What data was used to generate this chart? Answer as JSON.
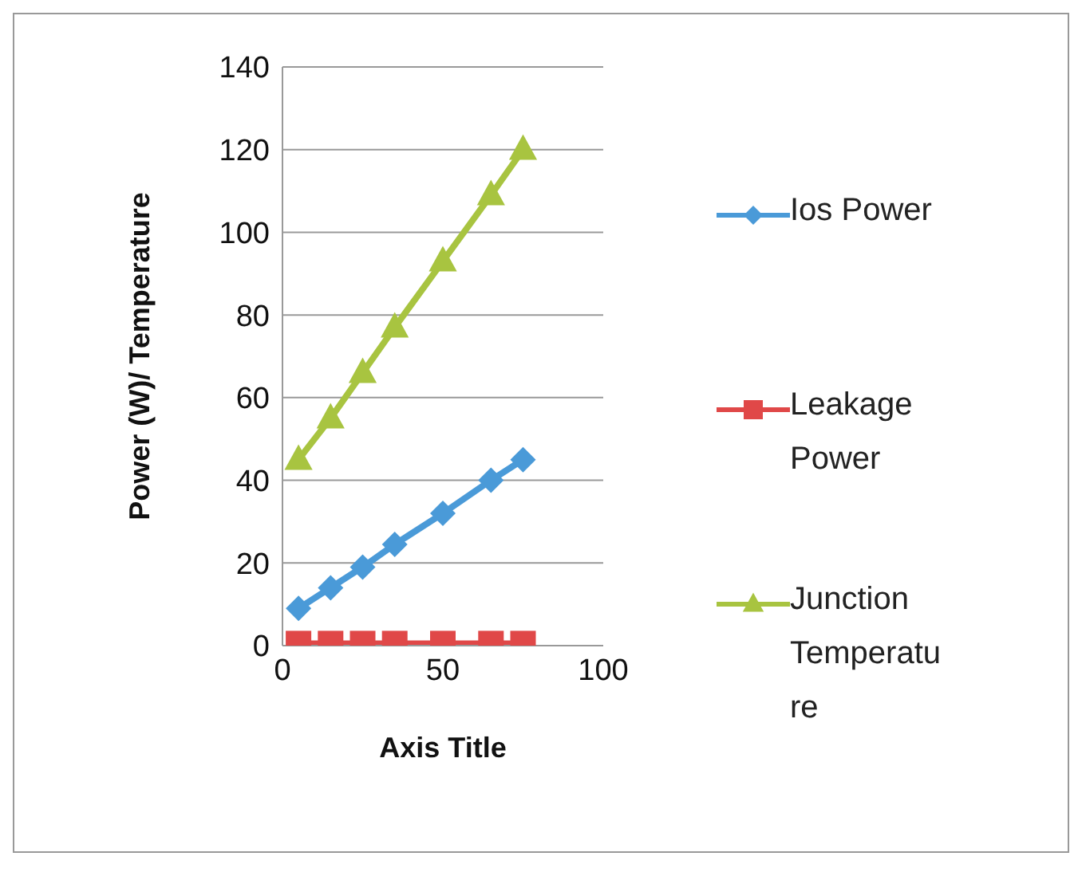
{
  "chart_data": {
    "type": "line",
    "xlabel": "Axis Title",
    "ylabel": "Power (W)/ Temperature",
    "xlim": [
      0,
      100
    ],
    "xticks": [
      0,
      50,
      100
    ],
    "ylim": [
      0,
      140
    ],
    "yticks": [
      0,
      20,
      40,
      60,
      80,
      100,
      120,
      140
    ],
    "grid": "y",
    "legend": "right",
    "line_style": "solid",
    "series": [
      {
        "name": "Ios Power",
        "marker": "diamond",
        "color": "#4a9ad8",
        "x": [
          5,
          15,
          25,
          35,
          50,
          65,
          75
        ],
        "values": [
          9,
          14,
          19,
          24.5,
          32,
          40,
          45
        ]
      },
      {
        "name": "Leakage Power",
        "marker": "square",
        "color": "#e04848",
        "x": [
          5,
          15,
          25,
          35,
          50,
          65,
          75
        ],
        "values": [
          0.5,
          0.5,
          0.5,
          0.5,
          0.5,
          0.5,
          0.5
        ]
      },
      {
        "name": "Junction Temperature",
        "marker": "triangle",
        "color": "#a8c440",
        "x": [
          5,
          15,
          25,
          35,
          50,
          65,
          75
        ],
        "values": [
          45,
          55,
          66,
          77,
          93,
          109,
          120
        ]
      }
    ]
  }
}
